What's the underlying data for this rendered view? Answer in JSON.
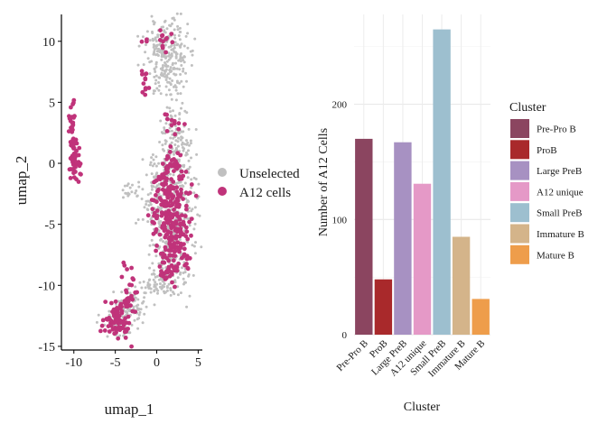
{
  "chart_data": [
    {
      "type": "scatter",
      "xlabel": "umap_1",
      "ylabel": "umap_2",
      "xlim": [
        -11.5,
        5.5
      ],
      "ylim": [
        -15.3,
        12.2
      ],
      "xticks": [
        -10,
        -5,
        0,
        5
      ],
      "yticks": [
        -15,
        -10,
        -5,
        0,
        5,
        10
      ],
      "grid": false,
      "legend_position": "right",
      "series": [
        {
          "name": "Unselected",
          "color": "#c0c0c0"
        },
        {
          "name": "A12 cells",
          "color": "#c0337a"
        }
      ]
    },
    {
      "type": "bar",
      "xlabel": "Cluster",
      "ylabel": "Number of A12 Cells",
      "categories": [
        "Pre-Pro B",
        "ProB",
        "Large PreB",
        "A12 unique",
        "Small PreB",
        "Immature B",
        "Mature B"
      ],
      "values": [
        170,
        48,
        167,
        131,
        265,
        85,
        31
      ],
      "colors": [
        "#8b4560",
        "#a9292b",
        "#a791c2",
        "#e599c7",
        "#9dbfcf",
        "#d4b48a",
        "#ee9d4b"
      ],
      "ylim": [
        0,
        278
      ],
      "yticks": [
        0,
        100,
        200
      ],
      "grid": true,
      "legend_title": "Cluster",
      "legend_position": "right"
    }
  ]
}
